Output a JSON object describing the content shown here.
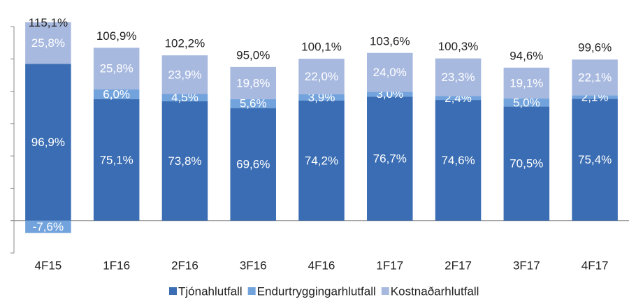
{
  "chart_data": {
    "type": "stacked_bar",
    "categories": [
      "4F15",
      "1F16",
      "2F16",
      "3F16",
      "4F16",
      "1F17",
      "2F17",
      "3F17",
      "4F17"
    ],
    "series": [
      {
        "name": "Tjónahlutfall",
        "color": "#3a6db3",
        "values": [
          96.9,
          75.1,
          73.8,
          69.6,
          74.2,
          76.7,
          74.6,
          70.5,
          75.4
        ],
        "value_labels": [
          "96,9%",
          "75,1%",
          "73,8%",
          "69,6%",
          "74,2%",
          "76,7%",
          "74,6%",
          "70,5%",
          "75,4%"
        ]
      },
      {
        "name": "Endurtryggingarhlutfall",
        "color": "#72a3dc",
        "values": [
          -7.6,
          6.0,
          4.5,
          5.6,
          3.9,
          3.0,
          2.4,
          5.0,
          2.1
        ],
        "value_labels": [
          "-7,6%",
          "6,0%",
          "4,5%",
          "5,6%",
          "3,9%",
          "3,0%",
          "2,4%",
          "5,0%",
          "2,1%"
        ]
      },
      {
        "name": "Kostnaðarhlutfall",
        "color": "#a8b9e0",
        "values": [
          25.8,
          25.8,
          23.9,
          19.8,
          22.0,
          24.0,
          23.3,
          19.1,
          22.1
        ],
        "value_labels": [
          "25,8%",
          "25,8%",
          "23,9%",
          "19,8%",
          "22,0%",
          "24,0%",
          "23,3%",
          "19,1%",
          "22,1%"
        ]
      }
    ],
    "totals": [
      115.1,
      106.9,
      102.2,
      95.0,
      100.1,
      103.6,
      100.3,
      94.6,
      99.6
    ],
    "total_labels": [
      "115,1%",
      "106,9%",
      "102,2%",
      "95,0%",
      "100,1%",
      "103,6%",
      "100,3%",
      "94,6%",
      "99,6%"
    ],
    "ylim": [
      -20,
      120
    ],
    "yticks": [
      -20,
      0,
      20,
      40,
      60,
      80,
      100,
      120
    ],
    "legend": "bottom"
  }
}
